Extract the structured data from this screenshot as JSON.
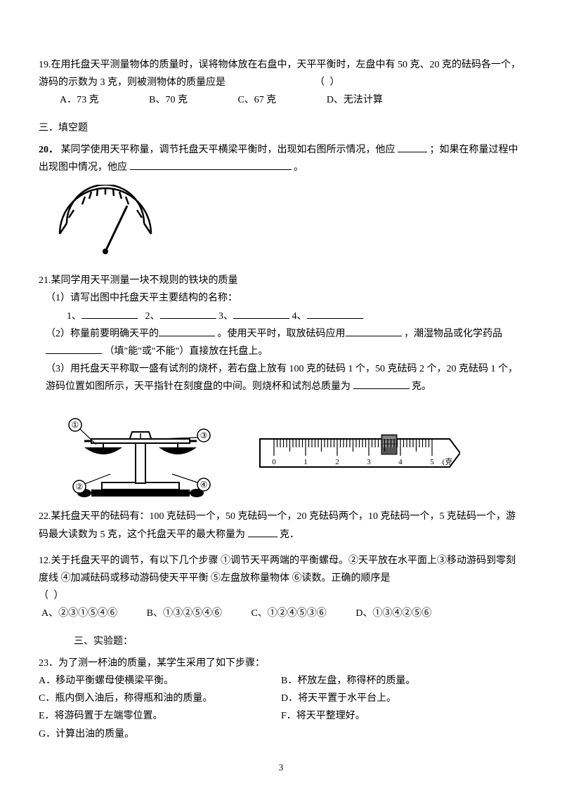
{
  "q19": {
    "text": "19.在用托盘天平测量物体的质量时，误将物体放在右盘中，天平平衡时，左盘中有 50 克、20 克的砝码各一个，游码的示数为 3 克，则被测物体的质量应是",
    "paren": "（    ）",
    "opts": {
      "a": "A．73 克",
      "b": "B、70 克",
      "c": "C、67 克",
      "d": "D、无法计算"
    }
  },
  "sec3": "三．填空题",
  "q20": {
    "label": "20．",
    "t1": "某同学使用天平称量，调节托盘天平横梁平衡时，出现如右图所示情况，他应 ",
    "t2": "；如果在称量过程中出现图中情况，他应",
    "t3": "。"
  },
  "q21": {
    "head": "21.某同学用天平测量一块不规则的铁块的质量",
    "p1a": "（1）请写出图中托盘天平主要结构的名称：",
    "p1b_nums": {
      "n1": "1、",
      "n2": "2、",
      "n3": "3、",
      "n4": "4、"
    },
    "p2a": "（2）称量前要明确天平的",
    "p2b": "。使用天平时，取放砝码应用",
    "p2c": "，潮湿物品或化学药品",
    "p2d": "（填\"能\"或\"不能\"）直接放在托盘上。",
    "p3a": "（3）用托盘天平称取一盛有试剂的烧杯，若右盘上放有 100 克的砝码 1 个，50 克砝码 2 个，20 克砝码 1 个，游码位置如图所示，天平指针在刻度盘的中间。则烧杯和试剂总质量为",
    "p3b": "克。",
    "circled": {
      "c1": "①",
      "c2": "②",
      "c3": "③",
      "c4": "④"
    },
    "ruler": {
      "n0": "0",
      "n1": "1",
      "n2": "2",
      "n3": "3",
      "n4": "4",
      "n5": "5",
      "unit": "(克"
    }
  },
  "q22": {
    "t1": "22.某托盘天平的砝码有：100 克砝码一个，50 克砝码一个，20 克砝码两个，10 克砝码一个，5 克砝码一个，游码最大读数为 5 克，这个托盘天平的最大称量为",
    "t2": "克．"
  },
  "q12": {
    "t1": "12.关于托盘天平的调节，有以下几个步骤  ①调节天平两端的平衡螺母。②天平放在水平面上③移动游码到零刻度线  ④加减砝码或移动游码使天平平衡 ⑤左盘放称量物体  ⑥读数。正确的顺序是",
    "paren": "（    ）",
    "opts": {
      "a": "A、②③①⑤④⑥",
      "b": "B、①③②⑤④⑥",
      "c": "C、①②④⑤③⑥",
      "d": "D、①③④②⑤⑥"
    }
  },
  "sec3b": "三、实验题：",
  "q23": {
    "head": "23．为了测一杯油的质量，某学生采用了如下步骤：",
    "a": "A．移动平衡螺母使横梁平衡。",
    "b": "B．杯放左盘，称得杯的质量。",
    "c": "C．瓶内倒入油后，称得瓶和油的质量。",
    "d": "D．将天平置于水平台上。",
    "e": "E．将游码置于左端零位置。",
    "f": "F．将天平整理好。",
    "g": "G．计算出油的质量。"
  },
  "pagenum": "3",
  "style": {
    "ink": "#000000",
    "bg": "#ffffff",
    "font_size_body": 14,
    "gauge_arc_marks": 11
  }
}
